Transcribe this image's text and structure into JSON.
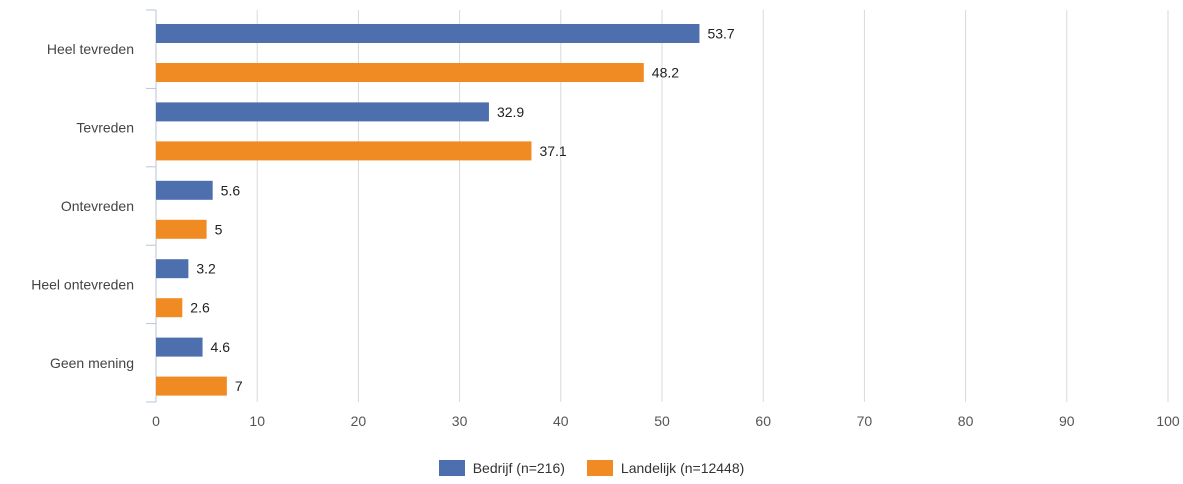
{
  "chart_data": {
    "type": "bar",
    "orientation": "horizontal",
    "categories": [
      "Heel tevreden",
      "Tevreden",
      "Ontevreden",
      "Heel ontevreden",
      "Geen mening"
    ],
    "series": [
      {
        "name": "Bedrijf (n=216)",
        "color": "#4e6fae",
        "values": [
          53.7,
          32.9,
          5.6,
          3.2,
          4.6
        ]
      },
      {
        "name": "Landelijk (n=12448)",
        "color": "#f08a22",
        "values": [
          48.2,
          37.1,
          5,
          2.6,
          7
        ]
      }
    ],
    "data_labels": [
      [
        "53.7",
        "32.9",
        "5.6",
        "3.2",
        "4.6"
      ],
      [
        "48.2",
        "37.1",
        "5",
        "2.6",
        "7"
      ]
    ],
    "xlim": [
      0,
      100
    ],
    "xticks": [
      "0",
      "10",
      "20",
      "30",
      "40",
      "50",
      "60",
      "70",
      "80",
      "90",
      "100"
    ],
    "grid": true,
    "legend_position": "bottom"
  }
}
